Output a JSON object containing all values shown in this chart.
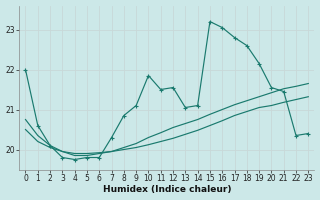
{
  "xlabel": "Humidex (Indice chaleur)",
  "ylabel": "",
  "background_color": "#cce8e8",
  "grid_color": "#b0d0d0",
  "line_color": "#1a7a6e",
  "xlim": [
    -0.5,
    23.5
  ],
  "ylim": [
    19.5,
    23.6
  ],
  "xticks": [
    0,
    1,
    2,
    3,
    4,
    5,
    6,
    7,
    8,
    9,
    10,
    11,
    12,
    13,
    14,
    15,
    16,
    17,
    18,
    19,
    20,
    21,
    22,
    23
  ],
  "yticks": [
    20,
    21,
    22,
    23
  ],
  "series1_x": [
    0,
    1,
    2,
    3,
    4,
    5,
    6,
    7,
    8,
    9,
    10,
    11,
    12,
    13,
    14,
    15,
    16,
    17,
    18,
    19,
    20,
    21,
    22,
    23
  ],
  "series1_y": [
    22.0,
    20.6,
    20.1,
    19.8,
    19.75,
    19.8,
    19.8,
    20.3,
    20.85,
    21.1,
    21.85,
    21.5,
    21.55,
    21.05,
    21.1,
    23.2,
    23.05,
    22.8,
    22.6,
    22.15,
    21.55,
    21.45,
    20.35,
    20.4
  ],
  "series2_x": [
    0,
    1,
    2,
    3,
    4,
    5,
    6,
    7,
    8,
    9,
    10,
    11,
    12,
    13,
    14,
    15,
    16,
    17,
    18,
    19,
    20,
    21,
    22,
    23
  ],
  "series2_y": [
    20.75,
    20.35,
    20.1,
    19.95,
    19.85,
    19.85,
    19.9,
    19.95,
    20.05,
    20.15,
    20.3,
    20.42,
    20.55,
    20.65,
    20.75,
    20.88,
    21.0,
    21.12,
    21.22,
    21.32,
    21.42,
    21.52,
    21.58,
    21.65
  ],
  "series3_x": [
    0,
    1,
    2,
    3,
    4,
    5,
    6,
    7,
    8,
    9,
    10,
    11,
    12,
    13,
    14,
    15,
    16,
    17,
    18,
    19,
    20,
    21,
    22,
    23
  ],
  "series3_y": [
    20.5,
    20.2,
    20.05,
    19.95,
    19.9,
    19.9,
    19.92,
    19.95,
    20.0,
    20.05,
    20.12,
    20.2,
    20.28,
    20.38,
    20.48,
    20.6,
    20.72,
    20.85,
    20.95,
    21.05,
    21.1,
    21.18,
    21.25,
    21.32
  ]
}
